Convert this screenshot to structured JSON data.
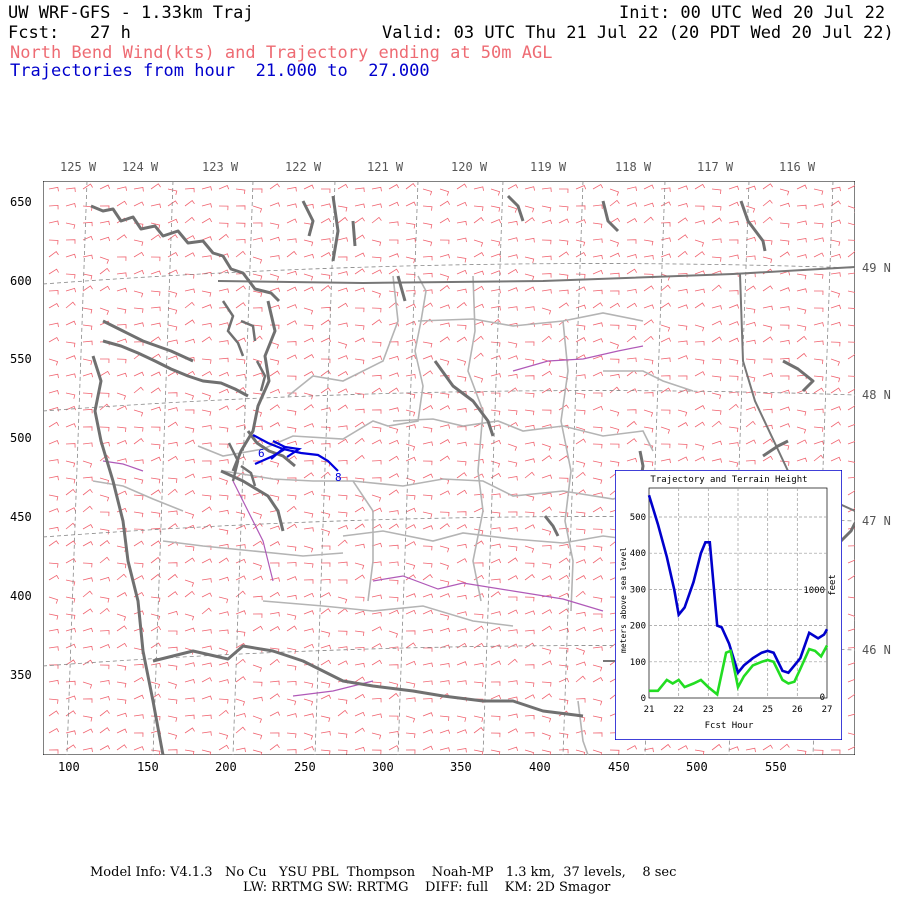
{
  "header": {
    "title": "UW WRF-GFS - 1.33km Traj",
    "init": "Init: 00 UTC Wed 20 Jul 22",
    "fcst": "Fcst:   27 h",
    "valid": "Valid: 03 UTC Thu 21 Jul 22 (20 PDT Wed 20 Jul 22)",
    "subtitle_red": "North Bend Wind(kts) and Trajectory ending at 50m AGL",
    "subtitle_blue": "Trajectories from hour  21.000 to  27.000"
  },
  "map": {
    "lon_labels": [
      "125 W",
      "124 W",
      "123 W",
      "122 W",
      "121 W",
      "120 W",
      "119 W",
      "118 W",
      "117 W",
      "116 W"
    ],
    "lat_labels": [
      "49 N",
      "48 N",
      "47 N",
      "46 N"
    ],
    "y_ticks": [
      "650",
      "600",
      "550",
      "500",
      "450",
      "400",
      "350"
    ],
    "x_ticks": [
      "100",
      "150",
      "200",
      "250",
      "300",
      "350",
      "400",
      "450",
      "500",
      "550"
    ],
    "trajectory_label_start": "6",
    "trajectory_label_end": "8",
    "colors": {
      "wind_barbs": "#f06470",
      "coastline": "#707070",
      "borders": "#b4b4b4",
      "rivers": "#b05ab8",
      "trajectory": "#0000dd",
      "grid": "#888888"
    }
  },
  "inset": {
    "title": "Trajectory and Terrain Height",
    "xlabel": "Fcst Hour",
    "ylabel_left": "meters above sea level",
    "ylabel_right": "feet",
    "right_tick_1000": "1000",
    "right_tick_0": "0"
  },
  "chart_data": {
    "type": "line",
    "title": "Trajectory and Terrain Height",
    "xlabel": "Fcst Hour",
    "ylabel": "meters above sea level",
    "xlim": [
      21,
      27
    ],
    "ylim": [
      0,
      580
    ],
    "x_ticks": [
      "21",
      "22",
      "23",
      "24",
      "25",
      "26",
      "27"
    ],
    "y_ticks": [
      "0",
      "100",
      "200",
      "300",
      "400",
      "500"
    ],
    "grid": true,
    "series": [
      {
        "color": "#0000cc",
        "x": [
          21.0,
          21.3,
          21.6,
          21.85,
          22.0,
          22.2,
          22.5,
          22.75,
          22.9,
          23.05,
          23.3,
          23.45,
          23.7,
          24.0,
          24.2,
          24.5,
          24.8,
          25.0,
          25.2,
          25.5,
          25.7,
          25.9,
          26.1,
          26.4,
          26.7,
          26.9,
          27.0
        ],
        "y": [
          560,
          480,
          390,
          300,
          230,
          250,
          320,
          400,
          430,
          430,
          200,
          195,
          150,
          70,
          90,
          110,
          125,
          130,
          125,
          75,
          70,
          90,
          110,
          180,
          165,
          175,
          190
        ]
      },
      {
        "color": "#22dd22",
        "x": [
          21.0,
          21.3,
          21.6,
          21.8,
          22.0,
          22.2,
          22.5,
          22.75,
          23.0,
          23.3,
          23.6,
          23.75,
          24.0,
          24.2,
          24.5,
          24.8,
          25.0,
          25.2,
          25.5,
          25.7,
          25.9,
          26.1,
          26.4,
          26.6,
          26.8,
          27.0
        ],
        "y": [
          20,
          20,
          50,
          40,
          50,
          30,
          40,
          50,
          30,
          10,
          125,
          130,
          30,
          60,
          90,
          100,
          105,
          100,
          50,
          40,
          45,
          80,
          135,
          130,
          115,
          145
        ]
      }
    ]
  },
  "footer": {
    "line1": "Model Info: V4.1.3   No Cu   YSU PBL  Thompson    Noah-MP   1.3 km,  37 levels,    8 sec",
    "line2": "LW: RRTMG SW: RRTMG    DIFF: full    KM: 2D Smagor"
  }
}
